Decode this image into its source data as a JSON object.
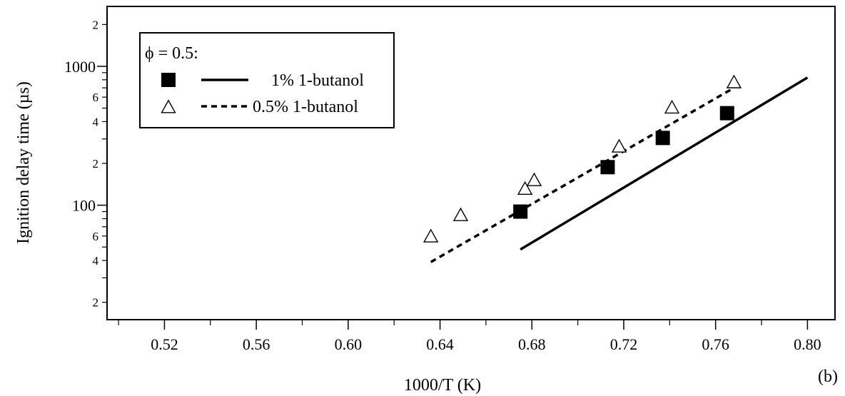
{
  "chart_data": {
    "type": "scatter",
    "xlabel": "1000/T (K)",
    "ylabel": "Ignition delay time (µs)",
    "panel_label": "(b)",
    "xlim": [
      0.495,
      0.812
    ],
    "ylim": [
      15,
      2700
    ],
    "y_scale": "log",
    "grid": false,
    "x_ticks": [
      0.52,
      0.56,
      0.6,
      0.64,
      0.68,
      0.72,
      0.76,
      0.8
    ],
    "x_tick_labels": [
      "0.52",
      "0.56",
      "0.60",
      "0.64",
      "0.68",
      "0.72",
      "0.76",
      "0.80"
    ],
    "y_major_ticks": [
      100,
      1000
    ],
    "y_major_labels": [
      "100",
      "1000"
    ],
    "y_minor_ticks": [
      20,
      40,
      60,
      200,
      400,
      600,
      2000
    ],
    "y_minor_labels": [
      "2",
      "4",
      "6",
      "2",
      "4",
      "6",
      "2"
    ],
    "legend": {
      "position": "top-left",
      "header": "ϕ = 0.5:",
      "entries": [
        "1% 1-butanol",
        "0.5% 1-butanol"
      ]
    },
    "series": [
      {
        "name": "1% 1-butanol",
        "marker": "filled-square",
        "line_style": "solid",
        "color": "#000000",
        "points": [
          [
            0.675,
            90
          ],
          [
            0.713,
            188
          ],
          [
            0.737,
            305
          ],
          [
            0.765,
            460
          ]
        ],
        "model_line": [
          [
            0.675,
            48
          ],
          [
            0.8,
            830
          ]
        ]
      },
      {
        "name": "0.5% 1-butanol",
        "marker": "open-triangle",
        "line_style": "dashed",
        "color": "#000000",
        "points": [
          [
            0.636,
            59
          ],
          [
            0.649,
            84
          ],
          [
            0.677,
            130
          ],
          [
            0.681,
            150
          ],
          [
            0.718,
            262
          ],
          [
            0.741,
            500
          ],
          [
            0.768,
            760
          ]
        ],
        "model_line": [
          [
            0.636,
            39
          ],
          [
            0.768,
            700
          ]
        ]
      }
    ]
  }
}
